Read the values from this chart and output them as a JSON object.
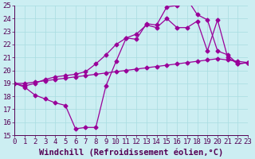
{
  "xlabel": "Windchill (Refroidissement éolien,°C)",
  "xlim": [
    0,
    23
  ],
  "ylim": [
    15,
    25
  ],
  "xticks": [
    0,
    1,
    2,
    3,
    4,
    5,
    6,
    7,
    8,
    9,
    10,
    11,
    12,
    13,
    14,
    15,
    16,
    17,
    18,
    19,
    20,
    21,
    22,
    23
  ],
  "yticks": [
    15,
    16,
    17,
    18,
    19,
    20,
    21,
    22,
    23,
    24,
    25
  ],
  "bg_color": "#cceef2",
  "line_color": "#990099",
  "line1_y": [
    19.0,
    18.7,
    18.1,
    17.8,
    17.5,
    17.3,
    15.5,
    15.6,
    15.6,
    18.8,
    20.7,
    22.5,
    22.4,
    23.6,
    23.5,
    24.9,
    25.0,
    25.5,
    24.3,
    23.9,
    21.5,
    21.2,
    20.5,
    20.6
  ],
  "line2_y": [
    19.0,
    18.8,
    19.0,
    19.3,
    19.5,
    19.6,
    19.7,
    19.9,
    20.5,
    21.2,
    22.0,
    22.5,
    22.8,
    23.5,
    23.3,
    24.0,
    23.3,
    23.3,
    23.8,
    21.5,
    23.9,
    21.0,
    20.5,
    20.6
  ],
  "line3_y": [
    19.0,
    19.0,
    19.1,
    19.2,
    19.3,
    19.4,
    19.5,
    19.6,
    19.7,
    19.8,
    19.9,
    20.0,
    20.1,
    20.2,
    20.3,
    20.4,
    20.5,
    20.6,
    20.7,
    20.8,
    20.9,
    20.8,
    20.7,
    20.6
  ],
  "tick_fontsize": 6.5,
  "xlabel_fontsize": 7.5
}
